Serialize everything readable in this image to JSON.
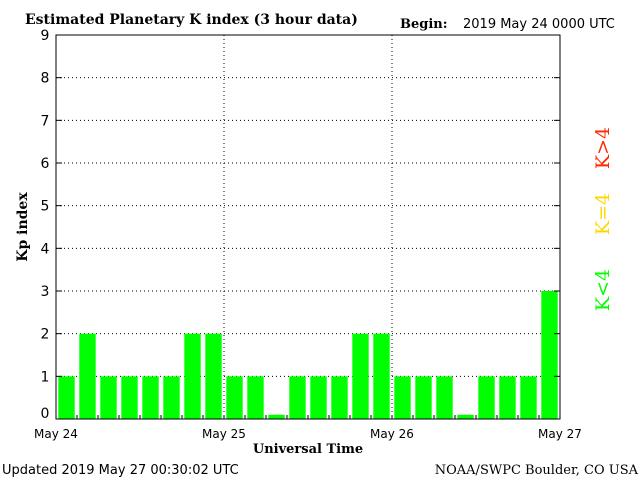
{
  "chart_data": {
    "type": "bar",
    "title": "Estimated Planetary K index (3 hour data)",
    "begin_label": "Begin:",
    "begin_value": "2019 May 24 0000 UTC",
    "ylabel": "Kp index",
    "xlabel": "Universal Time",
    "ylim": [
      0,
      9
    ],
    "yticks": [
      "0",
      "1",
      "2",
      "3",
      "4",
      "5",
      "6",
      "7",
      "8",
      "9"
    ],
    "xticks": [
      "May 24",
      "May 25",
      "May 26",
      "May 27"
    ],
    "grid": true,
    "values": [
      1,
      2,
      1,
      1,
      1,
      1,
      2,
      2,
      1,
      1,
      0.1,
      1,
      1,
      1,
      2,
      2,
      1,
      1,
      1,
      0.1,
      1,
      1,
      1,
      3
    ],
    "bar_color": "#00ff00",
    "legend": [
      {
        "label": "K<4",
        "color": "#00ff00"
      },
      {
        "label": "K=4",
        "color": "#ffd700"
      },
      {
        "label": "K>4",
        "color": "#ff2a00"
      }
    ]
  },
  "footer": {
    "updated": "Updated 2019 May 27 00:30:02 UTC",
    "source": "NOAA/SWPC Boulder, CO USA"
  }
}
